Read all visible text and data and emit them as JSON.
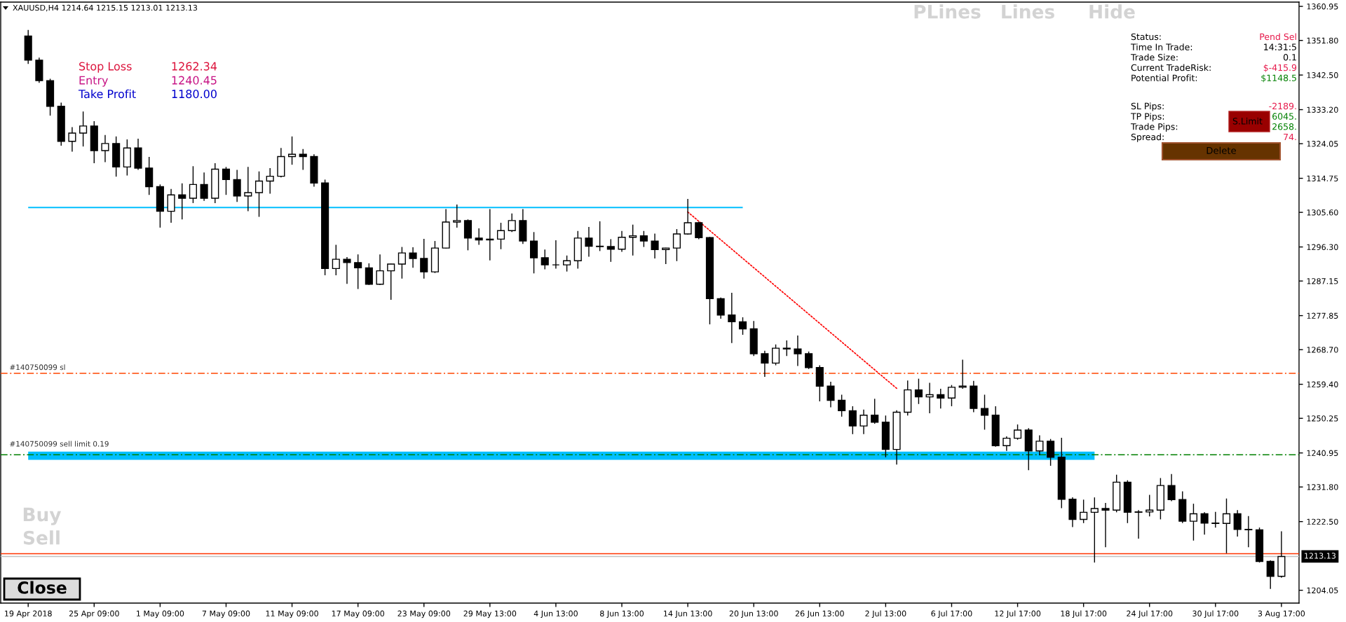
{
  "chart_data": {
    "type": "candlestick",
    "title": "XAUUSD,H4 1214.64 1215.15 1213.01 1213.13",
    "color": "#000000",
    "categories": [
      "19 Apr 2018",
      null,
      null,
      null,
      null,
      null,
      "25 Apr 09:00",
      null,
      null,
      null,
      null,
      null,
      "1 May 09:00",
      null,
      null,
      null,
      null,
      null,
      "7 May 09:00",
      null,
      null,
      null,
      null,
      null,
      "11 May 09:00",
      null,
      null,
      null,
      null,
      null,
      "17 May 09:00",
      null,
      null,
      null,
      null,
      null,
      "23 May 09:00",
      null,
      null,
      null,
      null,
      null,
      "29 May 13:00",
      null,
      null,
      null,
      null,
      null,
      "4 Jun 13:00",
      null,
      null,
      null,
      null,
      null,
      "8 Jun 13:00",
      null,
      null,
      null,
      null,
      null,
      "14 Jun 13:00",
      null,
      null,
      null,
      null,
      null,
      "20 Jun 13:00",
      null,
      null,
      null,
      null,
      null,
      "26 Jun 13:00",
      null,
      null,
      null,
      null,
      null,
      "2 Jul 13:00",
      null,
      null,
      null,
      null,
      null,
      "6 Jul 17:00",
      null,
      null,
      null,
      null,
      null,
      "12 Jul 17:00",
      null,
      null,
      null,
      null,
      null,
      "18 Jul 17:00",
      null,
      null,
      null,
      null,
      null,
      "24 Jul 17:00",
      null,
      null,
      null,
      null,
      null,
      "30 Jul 17:00",
      null,
      null,
      null,
      null,
      null,
      "3 Aug 17:00"
    ],
    "ohlc": [
      [
        1353.0,
        1354.6,
        1345.5,
        1346.5
      ],
      [
        1346.5,
        1347.2,
        1340.4,
        1341.0
      ],
      [
        1341.0,
        1341.5,
        1331.6,
        1334.1
      ],
      [
        1334.1,
        1335.1,
        1323.5,
        1324.7
      ],
      [
        1324.7,
        1328.5,
        1321.9,
        1326.9
      ],
      [
        1326.9,
        1332.7,
        1323.3,
        1328.8
      ],
      [
        1328.8,
        1330.1,
        1318.8,
        1322.2
      ],
      [
        1322.2,
        1326.4,
        1319.1,
        1324.1
      ],
      [
        1324.1,
        1326.0,
        1315.2,
        1317.8
      ],
      [
        1317.8,
        1325.2,
        1315.5,
        1322.9
      ],
      [
        1322.9,
        1325.4,
        1317.0,
        1317.5
      ],
      [
        1317.5,
        1320.5,
        1310.3,
        1312.5
      ],
      [
        1312.5,
        1313.1,
        1301.5,
        1305.9
      ],
      [
        1305.9,
        1311.9,
        1302.8,
        1310.3
      ],
      [
        1310.3,
        1313.4,
        1303.7,
        1309.4
      ],
      [
        1309.4,
        1318.0,
        1308.1,
        1313.1
      ],
      [
        1313.1,
        1316.3,
        1308.7,
        1309.4
      ],
      [
        1309.4,
        1318.8,
        1308.1,
        1317.2
      ],
      [
        1317.2,
        1317.8,
        1310.3,
        1314.4
      ],
      [
        1314.4,
        1317.0,
        1308.4,
        1310.0
      ],
      [
        1310.0,
        1317.8,
        1305.9,
        1310.9
      ],
      [
        1310.9,
        1316.6,
        1304.4,
        1314.0
      ],
      [
        1314.0,
        1317.5,
        1310.6,
        1315.3
      ],
      [
        1315.3,
        1322.9,
        1315.0,
        1320.6
      ],
      [
        1320.6,
        1326.0,
        1318.4,
        1321.2
      ],
      [
        1321.2,
        1322.6,
        1317.0,
        1320.6
      ],
      [
        1320.6,
        1321.2,
        1312.5,
        1313.5
      ],
      [
        1313.5,
        1314.4,
        1288.7,
        1290.5
      ],
      [
        1290.5,
        1296.9,
        1288.7,
        1293.0
      ],
      [
        1293.0,
        1293.6,
        1286.4,
        1292.1
      ],
      [
        1292.1,
        1294.3,
        1285.0,
        1290.7
      ],
      [
        1290.7,
        1291.9,
        1286.1,
        1286.3
      ],
      [
        1286.3,
        1294.3,
        1286.1,
        1289.9
      ],
      [
        1289.9,
        1291.8,
        1282.1,
        1291.7
      ],
      [
        1291.7,
        1296.3,
        1287.8,
        1294.7
      ],
      [
        1294.7,
        1296.2,
        1290.7,
        1293.2
      ],
      [
        1293.2,
        1298.5,
        1287.8,
        1289.6
      ],
      [
        1289.6,
        1297.9,
        1289.3,
        1296.0
      ],
      [
        1296.0,
        1306.5,
        1295.9,
        1303.0
      ],
      [
        1303.0,
        1307.7,
        1301.5,
        1303.4
      ],
      [
        1303.4,
        1303.7,
        1295.4,
        1298.7
      ],
      [
        1298.7,
        1301.3,
        1296.9,
        1298.2
      ],
      [
        1298.2,
        1306.5,
        1292.7,
        1298.4
      ],
      [
        1298.4,
        1302.8,
        1295.7,
        1300.7
      ],
      [
        1300.7,
        1305.3,
        1300.3,
        1303.4
      ],
      [
        1303.4,
        1306.5,
        1297.1,
        1297.9
      ],
      [
        1297.9,
        1300.3,
        1289.2,
        1293.4
      ],
      [
        1293.4,
        1295.6,
        1290.3,
        1291.5
      ],
      [
        1291.5,
        1298.1,
        1290.5,
        1291.5
      ],
      [
        1291.5,
        1294.0,
        1289.7,
        1292.6
      ],
      [
        1292.6,
        1300.6,
        1290.5,
        1298.7
      ],
      [
        1298.7,
        1301.7,
        1293.7,
        1296.5
      ],
      [
        1296.5,
        1303.2,
        1295.2,
        1296.4
      ],
      [
        1296.4,
        1298.4,
        1292.3,
        1295.7
      ],
      [
        1295.7,
        1300.6,
        1295.0,
        1298.9
      ],
      [
        1298.9,
        1302.3,
        1294.0,
        1299.3
      ],
      [
        1299.3,
        1300.6,
        1296.3,
        1297.9
      ],
      [
        1297.9,
        1299.9,
        1293.2,
        1295.6
      ],
      [
        1295.6,
        1296.1,
        1291.7,
        1296.0
      ],
      [
        1296.0,
        1301.1,
        1292.5,
        1299.8
      ],
      [
        1299.8,
        1309.2,
        1299.6,
        1302.8
      ],
      [
        1302.8,
        1303.1,
        1298.4,
        1298.8
      ],
      [
        1298.8,
        1299.0,
        1275.5,
        1282.4
      ],
      [
        1282.4,
        1282.7,
        1277.0,
        1278.0
      ],
      [
        1278.0,
        1284.0,
        1270.5,
        1276.2
      ],
      [
        1276.2,
        1277.4,
        1272.7,
        1274.3
      ],
      [
        1274.3,
        1276.4,
        1267.0,
        1267.6
      ],
      [
        1267.6,
        1268.4,
        1261.4,
        1265.1
      ],
      [
        1265.1,
        1270.1,
        1264.5,
        1269.1
      ],
      [
        1269.1,
        1271.2,
        1267.0,
        1268.9
      ],
      [
        1268.9,
        1272.5,
        1264.3,
        1267.6
      ],
      [
        1267.6,
        1268.2,
        1263.5,
        1263.9
      ],
      [
        1263.9,
        1264.5,
        1254.8,
        1258.9
      ],
      [
        1258.9,
        1260.1,
        1253.2,
        1255.1
      ],
      [
        1255.1,
        1256.6,
        1250.7,
        1252.3
      ],
      [
        1252.3,
        1253.5,
        1246.0,
        1248.2
      ],
      [
        1248.2,
        1252.6,
        1246.0,
        1251.1
      ],
      [
        1251.1,
        1255.5,
        1248.8,
        1249.2
      ],
      [
        1249.2,
        1251.0,
        1239.8,
        1241.9
      ],
      [
        1241.9,
        1252.4,
        1237.8,
        1251.9
      ],
      [
        1251.9,
        1260.4,
        1251.0,
        1257.9
      ],
      [
        1257.9,
        1260.9,
        1254.1,
        1256.0
      ],
      [
        1256.0,
        1259.8,
        1251.6,
        1256.6
      ],
      [
        1256.6,
        1258.2,
        1252.9,
        1255.7
      ],
      [
        1255.7,
        1259.2,
        1253.5,
        1258.6
      ],
      [
        1258.6,
        1266.0,
        1258.2,
        1258.9
      ],
      [
        1258.9,
        1260.3,
        1251.9,
        1252.9
      ],
      [
        1252.9,
        1256.6,
        1247.2,
        1251.1
      ],
      [
        1251.1,
        1253.5,
        1242.6,
        1242.9
      ],
      [
        1242.9,
        1245.4,
        1241.5,
        1244.9
      ],
      [
        1244.9,
        1248.6,
        1244.5,
        1247.1
      ],
      [
        1247.1,
        1247.6,
        1236.3,
        1241.5
      ],
      [
        1241.5,
        1245.7,
        1240.3,
        1244.1
      ],
      [
        1244.1,
        1244.7,
        1237.5,
        1239.8
      ],
      [
        1239.8,
        1245.0,
        1226.1,
        1228.5
      ],
      [
        1228.5,
        1229.0,
        1221.0,
        1223.1
      ],
      [
        1223.1,
        1228.4,
        1222.1,
        1225.0
      ],
      [
        1225.0,
        1229.0,
        1211.5,
        1226.0
      ],
      [
        1226.0,
        1227.5,
        1215.6,
        1225.6
      ],
      [
        1225.6,
        1235.1,
        1225.0,
        1233.1
      ],
      [
        1233.1,
        1233.6,
        1222.1,
        1225.0
      ],
      [
        1225.0,
        1225.6,
        1217.9,
        1225.1
      ],
      [
        1225.1,
        1229.7,
        1223.9,
        1225.6
      ],
      [
        1225.6,
        1234.2,
        1223.1,
        1232.2
      ],
      [
        1232.2,
        1235.3,
        1228.0,
        1228.4
      ],
      [
        1228.4,
        1230.6,
        1222.1,
        1222.6
      ],
      [
        1222.6,
        1227.3,
        1217.4,
        1224.6
      ],
      [
        1224.6,
        1225.0,
        1219.0,
        1222.1
      ],
      [
        1222.1,
        1225.1,
        1220.9,
        1222.0
      ],
      [
        1222.0,
        1228.7,
        1214.0,
        1224.6
      ],
      [
        1224.6,
        1225.6,
        1218.5,
        1220.4
      ],
      [
        1220.4,
        1224.0,
        1215.6,
        1220.3
      ],
      [
        1220.3,
        1220.9,
        1211.5,
        1211.8
      ],
      [
        1211.8,
        1212.1,
        1204.4,
        1207.8
      ],
      [
        1207.8,
        1219.9,
        1207.4,
        1213.13
      ]
    ],
    "series": [
      {
        "type": "line",
        "color": "#00bfff",
        "values": [
          1306.9,
          1306.9,
          1306.9,
          1306.9,
          1306.9,
          1306.9,
          1306.9,
          1306.9,
          1306.9,
          1306.9,
          1306.9,
          1306.9,
          null,
          null,
          1306.9,
          1306.9,
          1306.9,
          1306.9,
          1306.9,
          1306.9,
          1306.9,
          1306.9,
          1306.9,
          1306.9,
          1306.9,
          1306.9,
          1306.9,
          null,
          1306.9,
          1306.9,
          1306.9,
          1306.9,
          1306.9,
          1306.9,
          1306.9,
          1306.9,
          1306.9,
          1306.9,
          1306.9,
          1306.9,
          1306.9,
          1306.9,
          1306.9,
          1306.9,
          1306.9,
          1306.9,
          1306.9,
          1306.9,
          1306.9,
          1306.9,
          1306.9,
          1306.9,
          1306.9,
          1306.9,
          1306.9,
          1306.9,
          1306.9,
          1306.9,
          1306.9,
          1306.9,
          1306.9,
          1306.9,
          1306.9,
          1306.9,
          1306.9,
          1306.9,
          null,
          null,
          null,
          null,
          null,
          null,
          null,
          null,
          null,
          null,
          null,
          null,
          null,
          null,
          null,
          null,
          null,
          null,
          null,
          null,
          null,
          null,
          null,
          null,
          null,
          null,
          null,
          null,
          null,
          null,
          null,
          null,
          null,
          null,
          null,
          null,
          null,
          null,
          null,
          null,
          null,
          null,
          null,
          null,
          null,
          null,
          null,
          null,
          null
        ]
      },
      {
        "type": "line",
        "color": "#00bfff",
        "values": [
          1240.2,
          1240.2,
          1240.2,
          1240.2,
          1240.2,
          1240.2,
          1240.2,
          1240.2,
          1240.2,
          1240.2,
          1240.2,
          1240.2,
          1240.2,
          1240.2,
          1240.2,
          1240.2,
          1240.2,
          1240.2,
          1240.2,
          1240.2,
          1240.2,
          1240.2,
          1240.2,
          1240.2,
          1240.2,
          1240.2,
          1240.2,
          1240.2,
          1240.2,
          1240.2,
          1240.2,
          1240.2,
          1240.2,
          1240.2,
          1240.2,
          1240.2,
          1240.2,
          1240.2,
          1240.2,
          1240.2,
          1240.2,
          1240.2,
          1240.2,
          1240.2,
          1240.2,
          1240.2,
          1240.2,
          1240.2,
          1240.2,
          1240.2,
          1240.2,
          1240.2,
          1240.2,
          1240.2,
          1240.2,
          1240.2,
          1240.2,
          1240.2,
          1240.2,
          1240.2,
          1240.2,
          1240.2,
          1240.2,
          1240.2,
          1240.2,
          1240.2,
          1240.2,
          1240.2,
          1240.2,
          1240.2,
          1240.2,
          1240.2,
          1240.2,
          1240.2,
          1240.2,
          1240.2,
          1240.2,
          1240.2,
          1240.2,
          1240.2,
          1240.2,
          1240.2,
          1240.2,
          1240.2,
          1240.2,
          1240.2,
          1240.2,
          1240.2,
          1240.2,
          1240.2,
          1240.2,
          1240.2,
          1240.2,
          null,
          1240.2,
          1240.2,
          1240.2,
          1240.2,
          null,
          null,
          null,
          null,
          null,
          null,
          null,
          null,
          null,
          null,
          null,
          null,
          null,
          null,
          null,
          null,
          null
        ]
      },
      {
        "type": "line",
        "color": "#ff0000",
        "line_style": "dotted",
        "values": [
          null,
          null,
          null,
          null,
          null,
          null,
          null,
          null,
          null,
          null,
          null,
          null,
          null,
          null,
          null,
          null,
          null,
          null,
          null,
          null,
          null,
          null,
          null,
          null,
          null,
          null,
          null,
          null,
          null,
          null,
          null,
          null,
          null,
          null,
          null,
          null,
          null,
          null,
          null,
          null,
          null,
          null,
          null,
          null,
          null,
          null,
          null,
          null,
          null,
          null,
          null,
          null,
          null,
          null,
          null,
          null,
          null,
          null,
          null,
          null,
          1305.7,
          null,
          null,
          null,
          null,
          null,
          null,
          null,
          null,
          null,
          null,
          null,
          null,
          null,
          null,
          null,
          null,
          null,
          null,
          1258.3,
          null,
          null,
          null,
          null,
          null,
          null,
          null,
          null,
          null,
          null,
          null,
          null,
          null,
          null,
          null,
          null,
          null,
          null,
          null,
          null,
          null,
          null,
          null,
          null,
          null,
          null,
          null,
          null,
          null,
          null,
          null,
          null,
          null,
          null,
          null
        ]
      }
    ],
    "ylim": [
      1200.6,
      1362.1
    ],
    "yticks": [
      1360.95,
      {
        "value": 1351.8,
        "label": "1351.80"
      },
      {
        "value": 1342.5,
        "label": "1342.50"
      },
      {
        "value": 1333.2,
        "label": "1333.20"
      },
      1324.05,
      1314.75,
      {
        "value": 1305.6,
        "label": "1305.60"
      },
      {
        "value": 1296.3,
        "label": "1296.30"
      },
      1287.15,
      1277.85,
      {
        "value": 1268.7,
        "label": "1268.70"
      },
      {
        "value": 1259.4,
        "label": "1259.40"
      },
      1250.25,
      1240.95,
      {
        "value": 1231.8,
        "label": "1231.80"
      },
      {
        "value": 1222.5,
        "label": "1222.50"
      },
      1204.05
    ],
    "ref_lines": [
      {
        "axis": "y",
        "value": 1262.34,
        "label": "#140750099 sl",
        "color": "#ff4500",
        "line_style": "dashdot"
      },
      {
        "axis": "y",
        "value": 1240.45,
        "label": "#140750099 sell limit 0.19",
        "color": "#008000",
        "line_style": "dashdot"
      },
      {
        "axis": "y",
        "value": 1213.13,
        "label": "1213.13",
        "color": "#c0c0c0"
      },
      {
        "axis": "y",
        "value": 1213.87,
        "color": "#ff3300"
      }
    ],
    "annotations": [
      "Stop Loss",
      "1262.34",
      "Entry",
      "1240.45",
      "Take Profit",
      "1180.00",
      "PLines",
      "Lines",
      "Hide",
      "Status:",
      "Pend Sel",
      "Time In Trade:",
      "14:31:5",
      "Trade Size:",
      "0.1",
      "Current TradeRisk:",
      "$-415.9",
      "Potential Profit:",
      "$1148.5",
      "SL Pips:",
      "-2189.",
      "TP Pips:",
      "6045.",
      "Trade Pips:",
      "2658.",
      "Spread:",
      "74.",
      "S.Limit",
      "Delete",
      "Buy",
      "Sell",
      "Close"
    ]
  }
}
